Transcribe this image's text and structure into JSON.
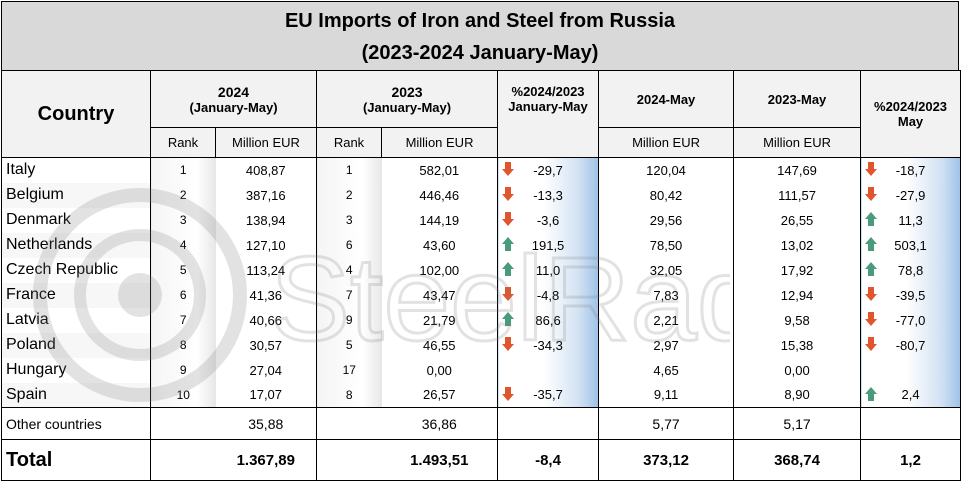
{
  "title": {
    "line1": "EU Imports of Iron and Steel from Russia",
    "line2": "(2023-2024 January-May)"
  },
  "header": {
    "country": "Country",
    "y2024_a": "2024",
    "y2024_b": "(January-May)",
    "y2023_a": "2023",
    "y2023_b": "(January-May)",
    "pct_a": "%2024/2023",
    "pct_b": "January-May",
    "m2024": "2024-May",
    "m2023": "2023-May",
    "pctm_a": "%2024/2023",
    "pctm_b": "May",
    "rank": "Rank",
    "million": "Million EUR"
  },
  "rows": [
    {
      "country": "Italy",
      "r24": "1",
      "v24": "408,87",
      "r23": "1",
      "v23": "582,01",
      "pct": "-29,7",
      "dir": "down",
      "m24": "120,04",
      "m23": "147,69",
      "pctm": "-18,7",
      "dirm": "down"
    },
    {
      "country": "Belgium",
      "r24": "2",
      "v24": "387,16",
      "r23": "2",
      "v23": "446,46",
      "pct": "-13,3",
      "dir": "down",
      "m24": "80,42",
      "m23": "111,57",
      "pctm": "-27,9",
      "dirm": "down"
    },
    {
      "country": "Denmark",
      "r24": "3",
      "v24": "138,94",
      "r23": "3",
      "v23": "144,19",
      "pct": "-3,6",
      "dir": "down",
      "m24": "29,56",
      "m23": "26,55",
      "pctm": "11,3",
      "dirm": "up"
    },
    {
      "country": "Netherlands",
      "r24": "4",
      "v24": "127,10",
      "r23": "6",
      "v23": "43,60",
      "pct": "191,5",
      "dir": "up",
      "m24": "78,50",
      "m23": "13,02",
      "pctm": "503,1",
      "dirm": "up"
    },
    {
      "country": "Czech Republic",
      "r24": "5",
      "v24": "113,24",
      "r23": "4",
      "v23": "102,00",
      "pct": "11,0",
      "dir": "up",
      "m24": "32,05",
      "m23": "17,92",
      "pctm": "78,8",
      "dirm": "up"
    },
    {
      "country": "France",
      "r24": "6",
      "v24": "41,36",
      "r23": "7",
      "v23": "43,47",
      "pct": "-4,8",
      "dir": "down",
      "m24": "7,83",
      "m23": "12,94",
      "pctm": "-39,5",
      "dirm": "down"
    },
    {
      "country": "Latvia",
      "r24": "7",
      "v24": "40,66",
      "r23": "9",
      "v23": "21,79",
      "pct": "86,6",
      "dir": "up",
      "m24": "2,21",
      "m23": "9,58",
      "pctm": "-77,0",
      "dirm": "down"
    },
    {
      "country": "Poland",
      "r24": "8",
      "v24": "30,57",
      "r23": "5",
      "v23": "46,55",
      "pct": "-34,3",
      "dir": "down",
      "m24": "2,97",
      "m23": "15,38",
      "pctm": "-80,7",
      "dirm": "down"
    },
    {
      "country": "Hungary",
      "r24": "9",
      "v24": "27,04",
      "r23": "17",
      "v23": "0,00",
      "pct": "",
      "dir": "",
      "m24": "4,65",
      "m23": "0,00",
      "pctm": "",
      "dirm": ""
    },
    {
      "country": "Spain",
      "r24": "10",
      "v24": "17,07",
      "r23": "8",
      "v23": "26,57",
      "pct": "-35,7",
      "dir": "down",
      "m24": "9,11",
      "m23": "8,90",
      "pctm": "2,4",
      "dirm": "up"
    }
  ],
  "other": {
    "country": "Other countries",
    "v24": "35,88",
    "v23": "36,86",
    "m24": "5,77",
    "m23": "5,17"
  },
  "total": {
    "country": "Total",
    "v24": "1.367,89",
    "v23": "1.493,51",
    "pct": "-8,4",
    "m24": "373,12",
    "m23": "368,74",
    "pctm": "1,2"
  },
  "watermark": {
    "text": "SteelRadar"
  },
  "colors": {
    "down": "#e0552d",
    "up": "#4a9a7c",
    "header_bg": "#f2f2f2",
    "gradient_blue": "#9fc2e7"
  }
}
